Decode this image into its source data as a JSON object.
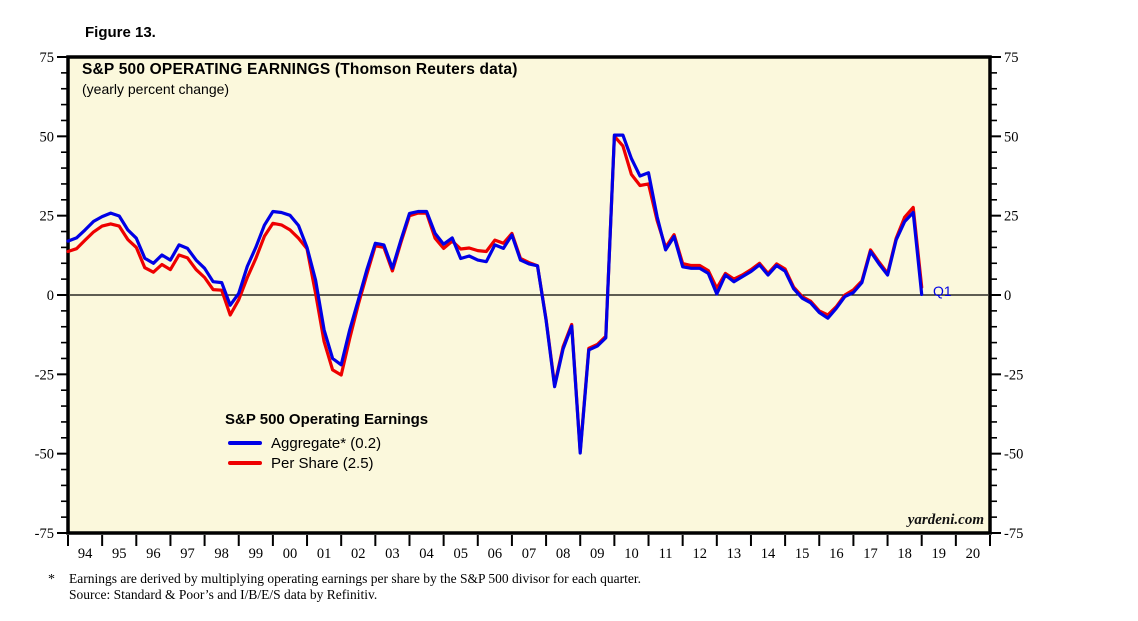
{
  "figure_label": "Figure 13.",
  "chart": {
    "title": "S&P 500 OPERATING EARNINGS (Thomson Reuters data)",
    "subtitle": "(yearly percent change)",
    "watermark": "yardeni.com",
    "end_label": "Q1",
    "plot_background": "#fbf8dc",
    "legend": {
      "title": "S&P 500 Operating Earnings",
      "items": [
        {
          "label": "Aggregate* (0.2)",
          "color": "#0000e6"
        },
        {
          "label": "Per Share (2.5)",
          "color": "#ee0000"
        }
      ]
    }
  },
  "footnote": {
    "marker": "*",
    "line1": "Earnings are derived by multiplying operating earnings per share by the S&P 500 divisor for each quarter.",
    "line2": "Source: Standard & Poor’s and I/B/E/S data by Refinitiv."
  },
  "chart_data": {
    "type": "line",
    "title": "S&P 500 OPERATING EARNINGS (Thomson Reuters data)",
    "subtitle": "(yearly percent change)",
    "frequency": "quarterly",
    "first_quarter": "1994Q1",
    "last_quarter": "2019Q1",
    "x_tick_labels": [
      "94",
      "95",
      "96",
      "97",
      "98",
      "99",
      "00",
      "01",
      "02",
      "03",
      "04",
      "05",
      "06",
      "07",
      "08",
      "09",
      "10",
      "11",
      "12",
      "13",
      "14",
      "15",
      "16",
      "17",
      "18",
      "19",
      "20"
    ],
    "y_ticks": [
      75,
      50,
      25,
      0,
      -25,
      -50,
      -75
    ],
    "y_minor_step": 5,
    "ylim": [
      -75,
      75
    ],
    "grid": "zero-line-only",
    "legend_position": "inside-lower-left",
    "series": [
      {
        "name": "Per Share (2.5)",
        "color": "#ee0000",
        "latest_value": 2.5,
        "values": [
          13.7,
          14.6,
          17.3,
          19.9,
          21.7,
          22.4,
          21.7,
          17.5,
          15.0,
          8.6,
          7.2,
          9.6,
          8.0,
          12.6,
          11.7,
          8.0,
          5.5,
          1.7,
          1.5,
          -6.3,
          -1.5,
          5.5,
          11.5,
          18.5,
          22.6,
          22.1,
          20.5,
          17.9,
          14.6,
          0.5,
          -14.7,
          -23.6,
          -25.2,
          -13.7,
          -3.0,
          6.5,
          15.5,
          15.0,
          7.6,
          16.5,
          25.0,
          25.8,
          25.8,
          17.9,
          14.7,
          17.0,
          14.5,
          14.8,
          14.0,
          13.7,
          17.3,
          16.3,
          19.4,
          11.5,
          10.2,
          9.2,
          -7.7,
          -28.4,
          -16.3,
          -9.3,
          -49.3,
          -16.8,
          -15.6,
          -13.0,
          50.0,
          47.0,
          38.0,
          34.5,
          35.0,
          23.5,
          15.0,
          19.0,
          9.9,
          9.3,
          9.3,
          7.7,
          2.1,
          6.8,
          5.0,
          6.3,
          8.0,
          10.0,
          6.8,
          9.8,
          8.2,
          2.5,
          -0.5,
          -2.0,
          -5.0,
          -6.3,
          -3.7,
          0.0,
          1.6,
          4.4,
          14.2,
          10.4,
          6.8,
          17.8,
          24.5,
          27.6,
          2.5
        ]
      },
      {
        "name": "Aggregate* (0.2)",
        "color": "#0000e6",
        "latest_value": 0.2,
        "values": [
          17.0,
          18.0,
          20.5,
          23.2,
          24.7,
          25.8,
          24.9,
          20.5,
          17.9,
          11.6,
          10.0,
          12.6,
          11.0,
          15.8,
          14.7,
          11.0,
          8.4,
          4.2,
          3.9,
          -3.2,
          0.5,
          9.0,
          15.0,
          22.0,
          26.3,
          26.0,
          25.1,
          21.9,
          15.0,
          4.7,
          -11.0,
          -20.0,
          -22.0,
          -11.0,
          -1.6,
          7.9,
          16.3,
          15.8,
          8.4,
          17.3,
          25.7,
          26.3,
          26.3,
          19.4,
          16.0,
          18.0,
          11.5,
          12.3,
          11.0,
          10.5,
          15.8,
          14.7,
          18.9,
          11.0,
          9.8,
          9.2,
          -8.0,
          -28.9,
          -17.0,
          -9.8,
          -49.8,
          -17.3,
          -16.1,
          -13.5,
          50.4,
          50.4,
          43.0,
          37.5,
          38.5,
          24.7,
          14.2,
          18.4,
          8.9,
          8.4,
          8.4,
          6.8,
          0.3,
          6.3,
          4.2,
          5.8,
          7.4,
          9.5,
          6.3,
          9.3,
          7.5,
          2.0,
          -1.0,
          -2.5,
          -5.5,
          -7.3,
          -4.2,
          -0.5,
          0.8,
          3.9,
          13.7,
          9.8,
          6.3,
          17.3,
          23.1,
          26.0,
          0.2
        ]
      }
    ]
  }
}
